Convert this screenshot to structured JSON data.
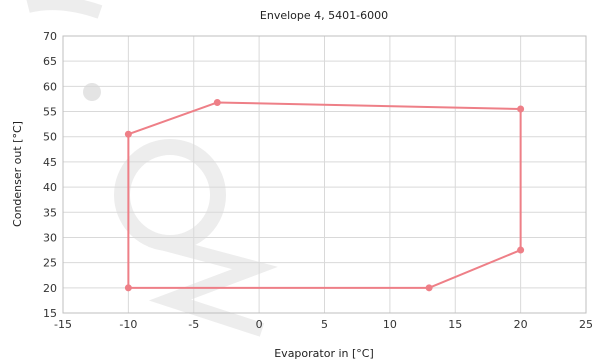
{
  "chart_data": {
    "type": "line",
    "title": "Envelope 4, 5401-6000",
    "xlabel": "Evaporator in  [°C]",
    "ylabel": "Condenser out  [°C]",
    "xlim": [
      -15,
      25
    ],
    "ylim": [
      15,
      70
    ],
    "xticks": [
      -15,
      -10,
      -5,
      0,
      5,
      10,
      15,
      20,
      25
    ],
    "yticks": [
      15,
      20,
      25,
      30,
      35,
      40,
      45,
      50,
      55,
      60,
      65,
      70
    ],
    "grid": true,
    "series": [
      {
        "color": "#ee7f87",
        "points": [
          {
            "x": -10,
            "y": 50.5
          },
          {
            "x": -3.2,
            "y": 56.8
          },
          {
            "x": 20,
            "y": 55.5
          },
          {
            "x": 20,
            "y": 27.5
          },
          {
            "x": 13,
            "y": 20
          },
          {
            "x": -10,
            "y": 20
          },
          {
            "x": -10,
            "y": 50.5
          }
        ]
      }
    ],
    "watermark_color": "#ededed"
  }
}
